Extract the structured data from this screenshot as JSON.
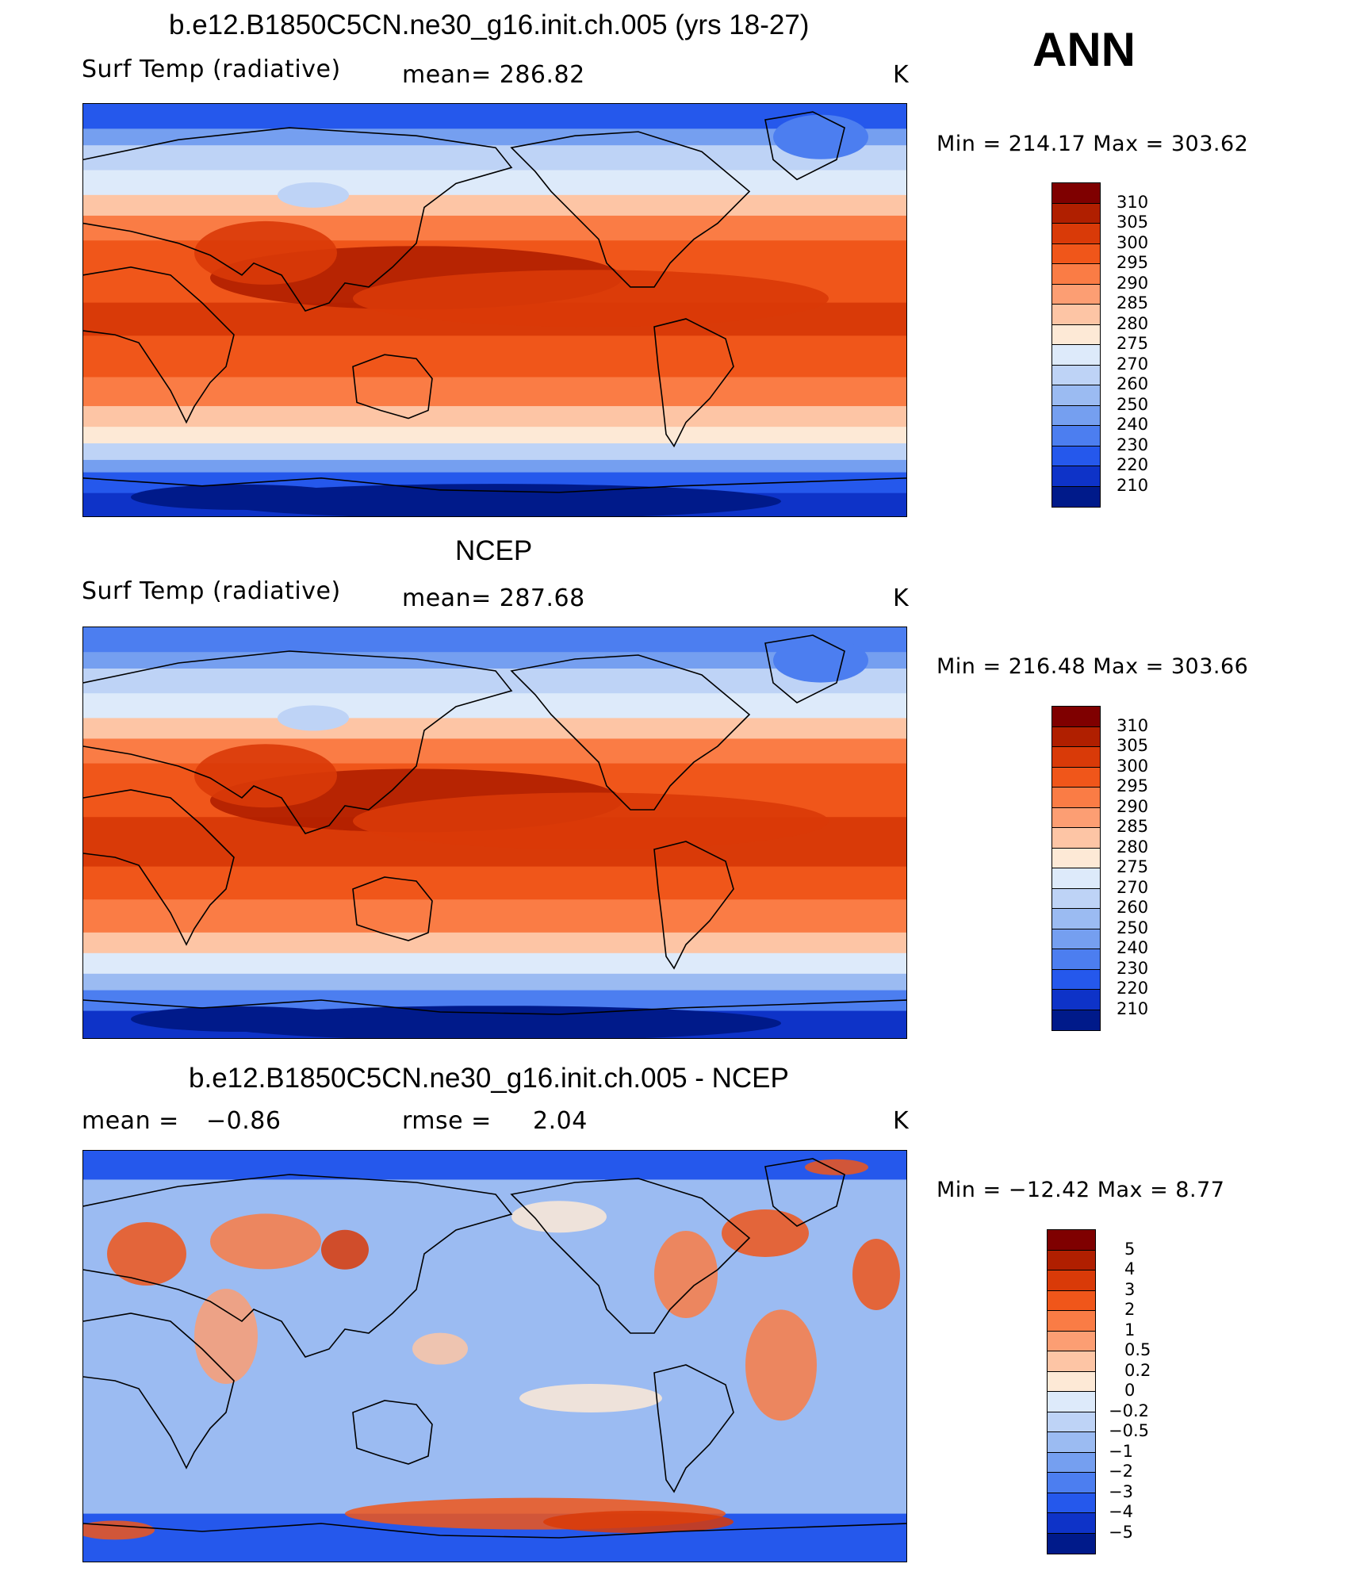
{
  "header": {
    "season": "ANN"
  },
  "panels": [
    {
      "title": "b.e12.B1850C5CN.ne30_g16.init.ch.005 (yrs 18-27)",
      "left_label": "Surf Temp (radiative)",
      "center_label": "mean= 286.82",
      "right_label": "K",
      "minmax": "Min = 214.17 Max = 303.62",
      "field": "model"
    },
    {
      "title": "NCEP",
      "left_label": "Surf Temp (radiative)",
      "center_label": "mean= 287.68",
      "right_label": "K",
      "minmax": "Min = 216.48 Max = 303.66",
      "field": "obs"
    },
    {
      "title": "b.e12.B1850C5CN.ne30_g16.init.ch.005 - NCEP",
      "left_label": "mean =",
      "left_value": "−0.86",
      "center_label": "rmse =",
      "center_value": "2.04",
      "right_label": "K",
      "minmax": "Min = −12.42 Max =   8.77",
      "field": "diff"
    }
  ],
  "colorbars": {
    "temp": {
      "labels": [
        "310",
        "305",
        "300",
        "295",
        "290",
        "285",
        "280",
        "275",
        "270",
        "260",
        "250",
        "240",
        "230",
        "220",
        "210"
      ],
      "colors": [
        "#7f0000",
        "#b01f00",
        "#d93a08",
        "#f0561a",
        "#fa7c45",
        "#fc9e73",
        "#fdc5a5",
        "#fde9d6",
        "#ddeafa",
        "#bed3f6",
        "#9bbbf2",
        "#759ff0",
        "#4c7ef0",
        "#2558ec",
        "#0e33c8",
        "#001a8a"
      ]
    },
    "diff": {
      "labels": [
        "5",
        "4",
        "3",
        "2",
        "1",
        "0.5",
        "0.2",
        "0",
        "−0.2",
        "−0.5",
        "−1",
        "−2",
        "−3",
        "−4",
        "−5"
      ],
      "colors": [
        "#7f0000",
        "#b01f00",
        "#d93a08",
        "#f0561a",
        "#fa7c45",
        "#fc9e73",
        "#fdc5a5",
        "#fde9d6",
        "#ddeafa",
        "#bed3f6",
        "#9bbbf2",
        "#759ff0",
        "#4c7ef0",
        "#2558ec",
        "#0e33c8",
        "#001a8a"
      ]
    }
  },
  "colors": {
    "land_outline": "#000000",
    "frame": "#000000"
  }
}
